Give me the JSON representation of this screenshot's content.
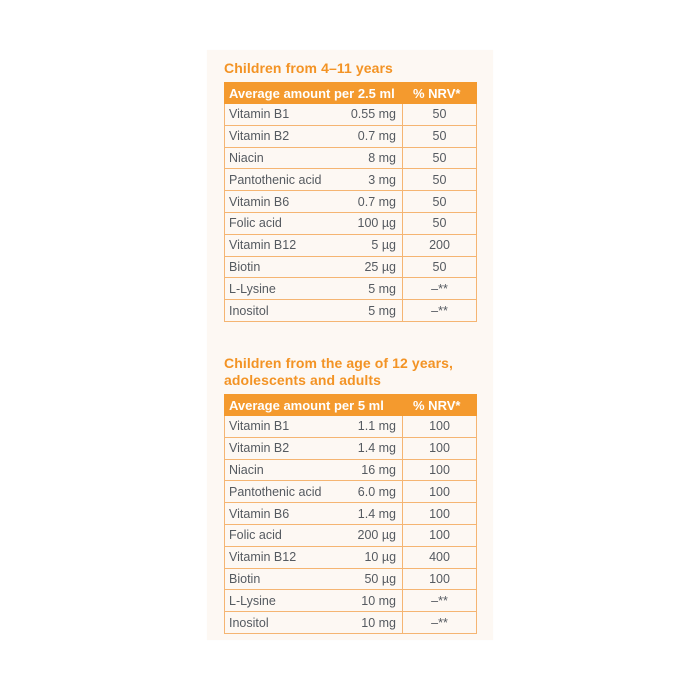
{
  "sections": [
    {
      "heading": [
        "Children from 4–11 years"
      ],
      "header": {
        "amount": "Average amount per 2.5 ml",
        "nrv": "% NRV*"
      },
      "rows": [
        {
          "name": "Vitamin B1",
          "amount": "0.55 mg",
          "nrv": "50"
        },
        {
          "name": "Vitamin B2",
          "amount": "0.7 mg",
          "nrv": "50"
        },
        {
          "name": "Niacin",
          "amount": "8 mg",
          "nrv": "50"
        },
        {
          "name": "Pantothenic acid",
          "amount": "3 mg",
          "nrv": "50"
        },
        {
          "name": "Vitamin B6",
          "amount": "0.7 mg",
          "nrv": "50"
        },
        {
          "name": "Folic acid",
          "amount": "100 µg",
          "nrv": "50"
        },
        {
          "name": "Vitamin B12",
          "amount": "5 µg",
          "nrv": "200"
        },
        {
          "name": "Biotin",
          "amount": "25 µg",
          "nrv": "50"
        },
        {
          "name": "L-Lysine",
          "amount": "5 mg",
          "nrv": "–**"
        },
        {
          "name": "Inositol",
          "amount": "5 mg",
          "nrv": "–**"
        }
      ]
    },
    {
      "heading": [
        "Children from the age of 12 years,",
        "adolescents and adults"
      ],
      "header": {
        "amount": "Average amount per 5 ml",
        "nrv": "% NRV*"
      },
      "rows": [
        {
          "name": "Vitamin B1",
          "amount": "1.1 mg",
          "nrv": "100"
        },
        {
          "name": "Vitamin B2",
          "amount": "1.4 mg",
          "nrv": "100"
        },
        {
          "name": "Niacin",
          "amount": "16 mg",
          "nrv": "100"
        },
        {
          "name": "Pantothenic acid",
          "amount": "6.0 mg",
          "nrv": "100"
        },
        {
          "name": "Vitamin B6",
          "amount": "1.4 mg",
          "nrv": "100"
        },
        {
          "name": "Folic acid",
          "amount": "200 µg",
          "nrv": "100"
        },
        {
          "name": "Vitamin B12",
          "amount": "10 µg",
          "nrv": "400"
        },
        {
          "name": "Biotin",
          "amount": "50 µg",
          "nrv": "100"
        },
        {
          "name": "L-Lysine",
          "amount": "10 mg",
          "nrv": "–**"
        },
        {
          "name": "Inositol",
          "amount": "10 mg",
          "nrv": "–**"
        }
      ]
    }
  ],
  "colors": {
    "accent": "#f49a2e",
    "border": "#f5b572",
    "panel": "#fdf8f3",
    "text": "#555a60"
  }
}
